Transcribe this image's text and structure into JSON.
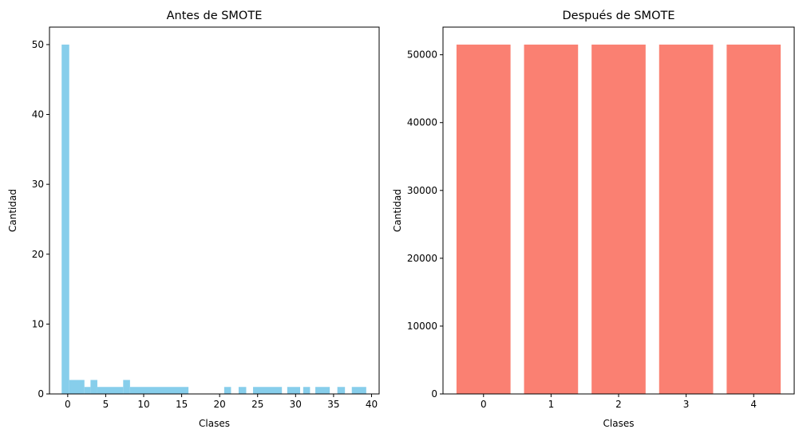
{
  "chart_data": [
    {
      "type": "bar",
      "title": "Antes de SMOTE",
      "xlabel": "Clases",
      "ylabel": "Cantidad",
      "color": "#87ceeb",
      "xlim": [
        -2.4,
        41.0
      ],
      "ylim": [
        0,
        52.5
      ],
      "xticks": [
        0,
        5,
        10,
        15,
        20,
        25,
        30,
        35,
        40
      ],
      "yticks": [
        0,
        10,
        20,
        30,
        40,
        50
      ],
      "x": [
        -0.3,
        0.5,
        1.7,
        3.3,
        5.0,
        7.6,
        9.0,
        15.0,
        21.0,
        23.0,
        24.6,
        29.0,
        31.0,
        33.0,
        36.0,
        38.7
      ],
      "values": [
        50,
        2,
        1,
        2,
        1,
        2,
        1,
        0,
        1,
        1,
        1,
        1,
        1,
        1,
        1,
        1
      ],
      "bins": [
        {
          "start": -0.8,
          "end": 0.2,
          "count": 50
        },
        {
          "start": 0.2,
          "end": 2.2,
          "count": 2
        },
        {
          "start": 2.2,
          "end": 3.0,
          "count": 1
        },
        {
          "start": 3.0,
          "end": 3.9,
          "count": 2
        },
        {
          "start": 3.9,
          "end": 7.3,
          "count": 1
        },
        {
          "start": 7.3,
          "end": 8.2,
          "count": 2
        },
        {
          "start": 8.2,
          "end": 15.9,
          "count": 1
        },
        {
          "start": 20.6,
          "end": 21.5,
          "count": 1
        },
        {
          "start": 22.5,
          "end": 23.5,
          "count": 1
        },
        {
          "start": 24.4,
          "end": 28.2,
          "count": 1
        },
        {
          "start": 28.9,
          "end": 30.6,
          "count": 1
        },
        {
          "start": 31.0,
          "end": 31.9,
          "count": 1
        },
        {
          "start": 32.6,
          "end": 34.5,
          "count": 1
        },
        {
          "start": 35.5,
          "end": 36.5,
          "count": 1
        },
        {
          "start": 37.4,
          "end": 39.3,
          "count": 1
        }
      ]
    },
    {
      "type": "bar",
      "title": "Después de SMOTE",
      "xlabel": "Clases",
      "ylabel": "Cantidad",
      "color": "#fa8072",
      "categories": [
        "0",
        "1",
        "2",
        "3",
        "4"
      ],
      "values": [
        51500,
        51500,
        51500,
        51500,
        51500
      ],
      "xlim": [
        -0.6,
        4.6
      ],
      "ylim": [
        0,
        54075
      ],
      "yticks": [
        0,
        10000,
        20000,
        30000,
        40000,
        50000
      ]
    }
  ]
}
